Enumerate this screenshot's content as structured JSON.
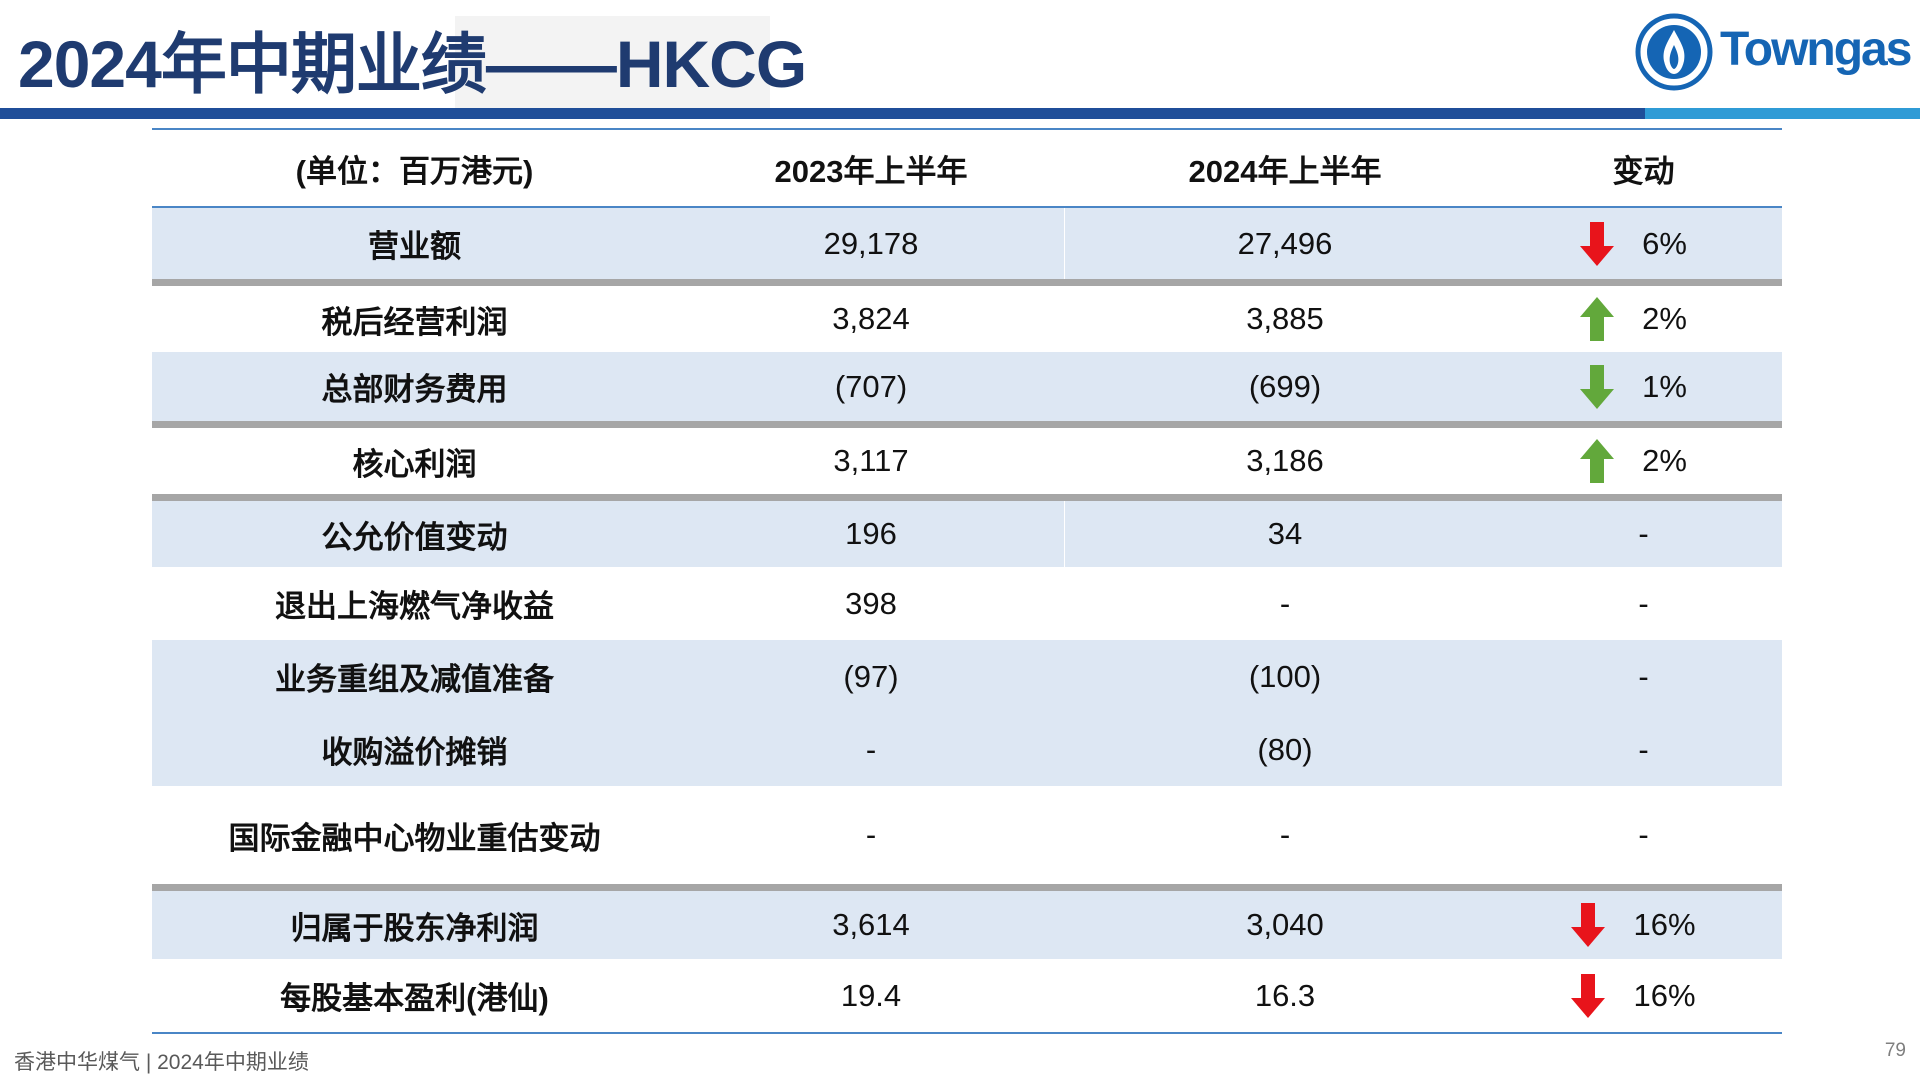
{
  "header": {
    "title": "2024年中期业绩——HKCG",
    "logo_text": "Towngas"
  },
  "table": {
    "columns": [
      "(单位：百万港元)",
      "2023年上半年",
      "2024年上半年",
      "变动"
    ],
    "rows": [
      {
        "label": "营业额",
        "h1_2023": "29,178",
        "h1_2024": "27,496",
        "arrow": "down-red",
        "change": "6%"
      },
      {
        "label": "税后经营利润",
        "h1_2023": "3,824",
        "h1_2024": "3,885",
        "arrow": "up-green",
        "change": "2%"
      },
      {
        "label": "总部财务费用",
        "h1_2023": "(707)",
        "h1_2024": "(699)",
        "arrow": "down-green",
        "change": "1%"
      },
      {
        "label": "核心利润",
        "h1_2023": "3,117",
        "h1_2024": "3,186",
        "arrow": "up-green",
        "change": "2%"
      },
      {
        "label": "公允价值变动",
        "h1_2023": "196",
        "h1_2024": "34",
        "arrow": "",
        "change": "-"
      },
      {
        "label": "退出上海燃气净收益",
        "h1_2023": "398",
        "h1_2024": "-",
        "arrow": "",
        "change": "-"
      },
      {
        "label": "业务重组及减值准备",
        "h1_2023": "(97)",
        "h1_2024": "(100)",
        "arrow": "",
        "change": "-"
      },
      {
        "label": "收购溢价摊销",
        "h1_2023": "-",
        "h1_2024": "(80)",
        "arrow": "",
        "change": "-"
      },
      {
        "label": "国际金融中心物业重估变动",
        "h1_2023": "-",
        "h1_2024": "-",
        "arrow": "",
        "change": "-"
      },
      {
        "label": "归属于股东净利润",
        "h1_2023": "3,614",
        "h1_2024": "3,040",
        "arrow": "down-red",
        "change": "16%"
      },
      {
        "label": "每股基本盈利(港仙)",
        "h1_2023": "19.4",
        "h1_2024": "16.3",
        "arrow": "down-red",
        "change": "16%"
      }
    ]
  },
  "colors": {
    "arrow_red": "#e8141b",
    "arrow_green": "#62a83b"
  },
  "footer": {
    "text": "香港中华煤气 | 2024年中期业绩",
    "page": "79"
  }
}
